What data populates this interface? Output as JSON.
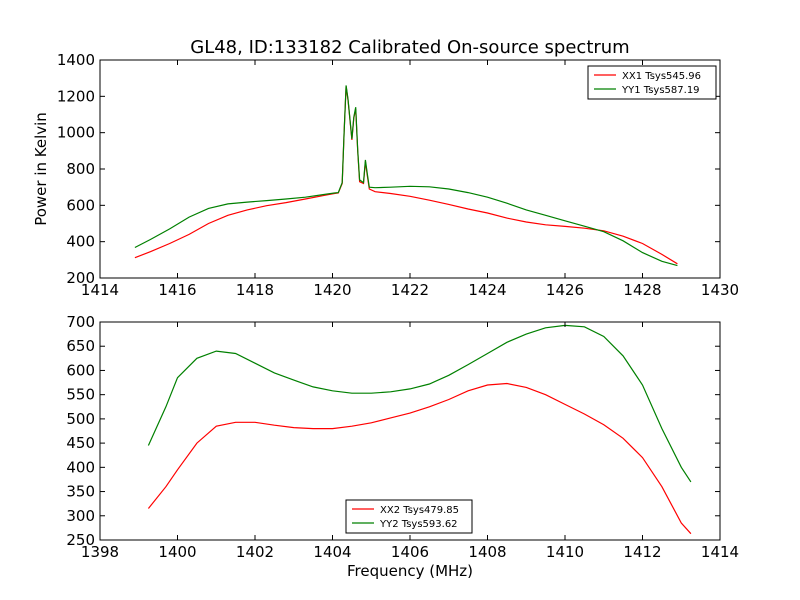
{
  "title": "GL48, ID:133182 Calibrated On-source spectrum",
  "chart_data": [
    {
      "type": "line",
      "ylabel": "Power in Kelvin",
      "xlabel": "",
      "xlim": [
        1414,
        1430
      ],
      "ylim": [
        200,
        1400
      ],
      "xticks": [
        1414,
        1416,
        1418,
        1420,
        1422,
        1424,
        1426,
        1428,
        1430
      ],
      "yticks": [
        200,
        400,
        600,
        800,
        1000,
        1200,
        1400
      ],
      "grid": false,
      "legend_position": "top-right",
      "series": [
        {
          "name": "XX1 Tsys545.96",
          "color": "#ff0000",
          "points": [
            [
              1414.9,
              312
            ],
            [
              1415.3,
              345
            ],
            [
              1415.8,
              390
            ],
            [
              1416.3,
              440
            ],
            [
              1416.8,
              500
            ],
            [
              1417.3,
              545
            ],
            [
              1417.8,
              575
            ],
            [
              1418.3,
              598
            ],
            [
              1418.8,
              615
            ],
            [
              1419.3,
              635
            ],
            [
              1419.8,
              655
            ],
            [
              1420.05,
              665
            ],
            [
              1420.15,
              668
            ],
            [
              1420.25,
              720
            ],
            [
              1420.3,
              1000
            ],
            [
              1420.35,
              1255
            ],
            [
              1420.4,
              1180
            ],
            [
              1420.5,
              960
            ],
            [
              1420.55,
              1080
            ],
            [
              1420.6,
              1130
            ],
            [
              1420.65,
              900
            ],
            [
              1420.7,
              730
            ],
            [
              1420.8,
              720
            ],
            [
              1420.85,
              840
            ],
            [
              1420.9,
              760
            ],
            [
              1420.95,
              690
            ],
            [
              1421.1,
              675
            ],
            [
              1421.5,
              665
            ],
            [
              1422,
              650
            ],
            [
              1422.5,
              628
            ],
            [
              1423,
              605
            ],
            [
              1423.5,
              580
            ],
            [
              1424,
              558
            ],
            [
              1424.5,
              530
            ],
            [
              1425,
              508
            ],
            [
              1425.5,
              493
            ],
            [
              1426,
              484
            ],
            [
              1426.5,
              474
            ],
            [
              1427,
              460
            ],
            [
              1427.5,
              430
            ],
            [
              1428,
              390
            ],
            [
              1428.5,
              330
            ],
            [
              1428.9,
              278
            ]
          ]
        },
        {
          "name": "YY1 Tsys587.19",
          "color": "#008000",
          "points": [
            [
              1414.9,
              368
            ],
            [
              1415.3,
              412
            ],
            [
              1415.8,
              470
            ],
            [
              1416.3,
              535
            ],
            [
              1416.8,
              583
            ],
            [
              1417.3,
              608
            ],
            [
              1417.8,
              618
            ],
            [
              1418.3,
              626
            ],
            [
              1418.8,
              635
            ],
            [
              1419.3,
              645
            ],
            [
              1419.8,
              660
            ],
            [
              1420.05,
              668
            ],
            [
              1420.15,
              670
            ],
            [
              1420.25,
              725
            ],
            [
              1420.3,
              1000
            ],
            [
              1420.35,
              1260
            ],
            [
              1420.4,
              1185
            ],
            [
              1420.5,
              965
            ],
            [
              1420.55,
              1085
            ],
            [
              1420.6,
              1140
            ],
            [
              1420.65,
              905
            ],
            [
              1420.7,
              740
            ],
            [
              1420.8,
              725
            ],
            [
              1420.85,
              850
            ],
            [
              1420.9,
              770
            ],
            [
              1420.95,
              700
            ],
            [
              1421.1,
              697
            ],
            [
              1421.5,
              700
            ],
            [
              1422,
              705
            ],
            [
              1422.5,
              702
            ],
            [
              1423,
              690
            ],
            [
              1423.5,
              670
            ],
            [
              1424,
              645
            ],
            [
              1424.5,
              612
            ],
            [
              1425,
              575
            ],
            [
              1425.5,
              545
            ],
            [
              1426,
              515
            ],
            [
              1426.5,
              485
            ],
            [
              1427,
              455
            ],
            [
              1427.5,
              405
            ],
            [
              1428,
              340
            ],
            [
              1428.5,
              292
            ],
            [
              1428.9,
              268
            ]
          ]
        }
      ]
    },
    {
      "type": "line",
      "ylabel": "",
      "xlabel": "Frequency (MHz)",
      "xlim": [
        1398,
        1414
      ],
      "ylim": [
        250,
        700
      ],
      "xticks": [
        1398,
        1400,
        1402,
        1404,
        1406,
        1408,
        1410,
        1412,
        1414
      ],
      "yticks": [
        250,
        300,
        350,
        400,
        450,
        500,
        550,
        600,
        650,
        700
      ],
      "grid": false,
      "legend_position": "bottom-center",
      "series": [
        {
          "name": "XX2 Tsys479.85",
          "color": "#ff0000",
          "points": [
            [
              1399.25,
              315
            ],
            [
              1399.7,
              360
            ],
            [
              1400,
              395
            ],
            [
              1400.5,
              450
            ],
            [
              1401,
              485
            ],
            [
              1401.5,
              493
            ],
            [
              1402,
              493
            ],
            [
              1402.5,
              487
            ],
            [
              1403,
              482
            ],
            [
              1403.5,
              480
            ],
            [
              1404,
              480
            ],
            [
              1404.5,
              485
            ],
            [
              1405,
              492
            ],
            [
              1405.5,
              502
            ],
            [
              1406,
              512
            ],
            [
              1406.5,
              525
            ],
            [
              1407,
              540
            ],
            [
              1407.5,
              558
            ],
            [
              1408,
              570
            ],
            [
              1408.5,
              573
            ],
            [
              1409,
              565
            ],
            [
              1409.5,
              550
            ],
            [
              1410,
              530
            ],
            [
              1410.5,
              510
            ],
            [
              1411,
              488
            ],
            [
              1411.5,
              460
            ],
            [
              1412,
              420
            ],
            [
              1412.5,
              360
            ],
            [
              1413,
              285
            ],
            [
              1413.25,
              263
            ]
          ]
        },
        {
          "name": "YY2 Tsys593.62",
          "color": "#008000",
          "points": [
            [
              1399.25,
              445
            ],
            [
              1399.7,
              525
            ],
            [
              1400,
              585
            ],
            [
              1400.5,
              625
            ],
            [
              1401,
              640
            ],
            [
              1401.5,
              635
            ],
            [
              1402,
              615
            ],
            [
              1402.5,
              595
            ],
            [
              1403,
              580
            ],
            [
              1403.5,
              566
            ],
            [
              1404,
              558
            ],
            [
              1404.5,
              553
            ],
            [
              1405,
              553
            ],
            [
              1405.5,
              556
            ],
            [
              1406,
              562
            ],
            [
              1406.5,
              572
            ],
            [
              1407,
              590
            ],
            [
              1407.5,
              612
            ],
            [
              1408,
              635
            ],
            [
              1408.5,
              658
            ],
            [
              1409,
              675
            ],
            [
              1409.5,
              688
            ],
            [
              1410,
              693
            ],
            [
              1410.5,
              690
            ],
            [
              1411,
              670
            ],
            [
              1411.5,
              630
            ],
            [
              1412,
              570
            ],
            [
              1412.5,
              480
            ],
            [
              1413,
              400
            ],
            [
              1413.25,
              370
            ]
          ]
        }
      ]
    }
  ]
}
